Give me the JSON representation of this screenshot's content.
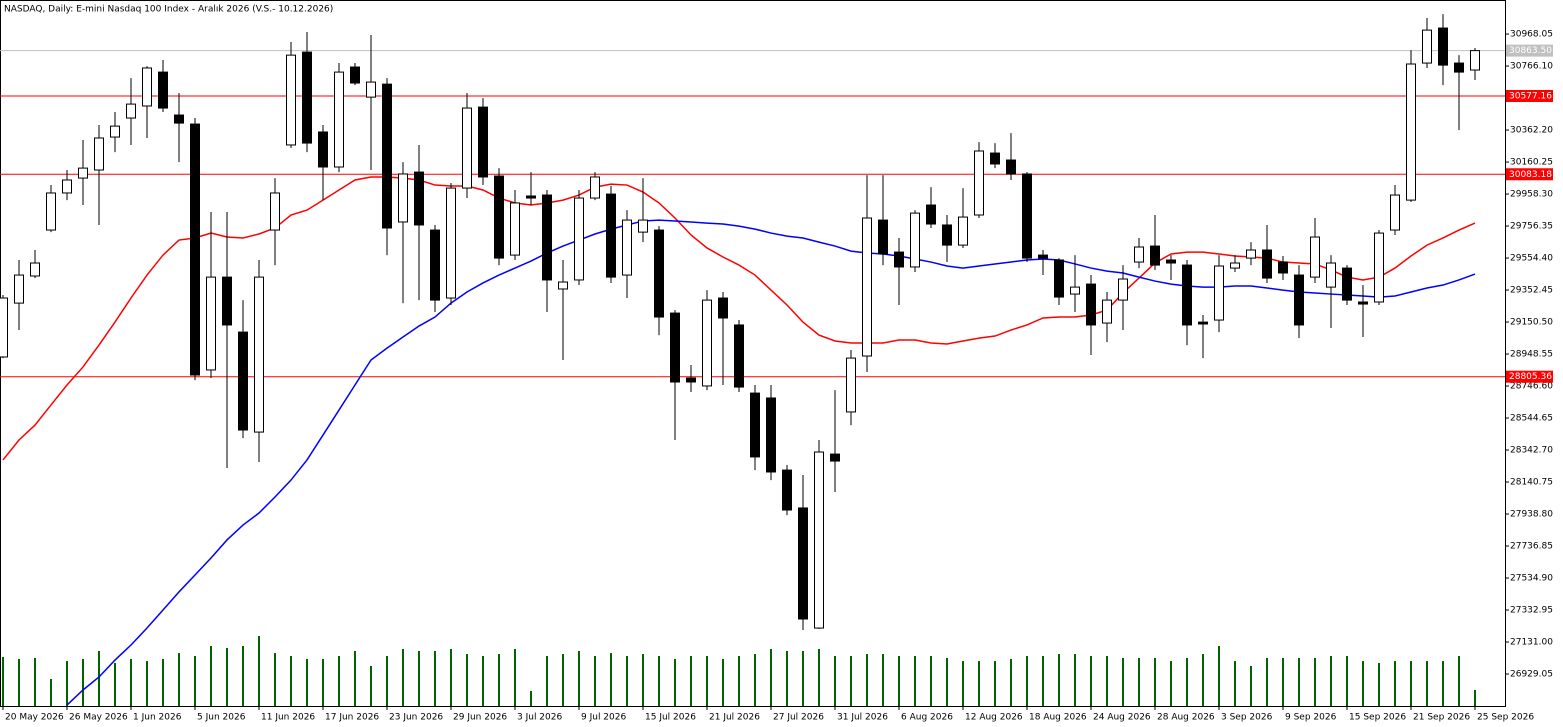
{
  "chart_data": {
    "type": "candlestick",
    "title": "NASDAQ, Daily:  E-mini Nasdaq 100 Index - Aralık 2026 (V.S.- 10.12.2026)",
    "categories": [
      "20 May 2026",
      null,
      null,
      null,
      "26 May 2026",
      null,
      null,
      null,
      "1 Jun 2026",
      null,
      null,
      null,
      "5 Jun 2026",
      null,
      null,
      null,
      "11 Jun 2026",
      null,
      null,
      null,
      "17 Jun 2026",
      null,
      null,
      null,
      "23 Jun 2026",
      null,
      null,
      null,
      "29 Jun 2026",
      null,
      null,
      null,
      "3 Jul 2026",
      null,
      null,
      null,
      "9 Jul 2026",
      null,
      null,
      null,
      "15 Jul 2026",
      null,
      null,
      null,
      "21 Jul 2026",
      null,
      null,
      null,
      "27 Jul 2026",
      null,
      null,
      null,
      "31 Jul 2026",
      null,
      null,
      null,
      "6 Aug 2026",
      null,
      null,
      null,
      "12 Aug 2026",
      null,
      null,
      null,
      "18 Aug 2026",
      null,
      null,
      null,
      "24 Aug 2026",
      null,
      null,
      null,
      "28 Aug 2026",
      null,
      null,
      null,
      "3 Sep 2026",
      null,
      null,
      null,
      "9 Sep 2026",
      null,
      null,
      null,
      "15 Sep 2026",
      null,
      null,
      null,
      "21 Sep 2026",
      null,
      null,
      null,
      "25 Sep 2026"
    ],
    "open": [
      28930,
      29270,
      29441,
      29731,
      29965,
      30059,
      30110,
      30318,
      30438,
      30514,
      30728,
      30457,
      30400,
      28848,
      29434,
      29087,
      28456,
      29731,
      30268,
      30854,
      30350,
      30129,
      30760,
      30570,
      30652,
      29782,
      30097,
      29731,
      29302,
      29996,
      30507,
      30072,
      29573,
      29946,
      29952,
      29359,
      29416,
      29933,
      29958,
      29447,
      29718,
      29731,
      29207,
      28797,
      28747,
      29302,
      29132,
      28702,
      28671,
      28216,
      27977,
      27219,
      28317,
      28583,
      28936,
      29794,
      29592,
      29498,
      29889,
      29763,
      29636,
      29826,
      30217,
      30173,
      30085,
      29573,
      29542,
      29327,
      29390,
      29144,
      29289,
      29529,
      29630,
      29542,
      29510,
      29150,
      29163,
      29491,
      29554,
      29605,
      29529,
      29447,
      29434,
      29371,
      29491,
      29277,
      29277,
      29731,
      29920,
      30785,
      31006,
      30785,
      30741
    ],
    "high": [
      29321,
      29542,
      29605,
      30015,
      30110,
      30299,
      30394,
      30476,
      30690,
      30766,
      30804,
      30596,
      30438,
      29845,
      29845,
      29289,
      29542,
      30059,
      30918,
      30981,
      30394,
      30785,
      30785,
      30962,
      30690,
      30160,
      30268,
      29763,
      30028,
      30596,
      30564,
      30122,
      29984,
      30097,
      29984,
      29542,
      29984,
      30097,
      30009,
      29857,
      30059,
      29756,
      29226,
      28879,
      29352,
      29340,
      29163,
      28753,
      28753,
      28248,
      28185,
      28406,
      28721,
      28974,
      30078,
      30078,
      29681,
      29857,
      30002,
      29826,
      29996,
      30286,
      30280,
      30343,
      30097,
      29605,
      29554,
      29573,
      29447,
      29340,
      29510,
      29681,
      29826,
      29573,
      29542,
      29195,
      29573,
      29573,
      29655,
      29763,
      29567,
      29510,
      29807,
      29573,
      29510,
      29384,
      29731,
      30015,
      30867,
      31069,
      31094,
      30835,
      30880
    ],
    "low": [
      28923,
      29100,
      29428,
      29718,
      29920,
      29889,
      29763,
      30223,
      30268,
      30312,
      30476,
      30160,
      28784,
      28797,
      28229,
      28418,
      28267,
      29510,
      30249,
      30223,
      29920,
      30097,
      30646,
      30110,
      29573,
      29270,
      29289,
      29214,
      29258,
      29933,
      30015,
      29510,
      29542,
      29889,
      29214,
      28911,
      29384,
      29920,
      29397,
      29302,
      29655,
      29068,
      28406,
      28709,
      28721,
      28753,
      28709,
      28216,
      28153,
      27932,
      27207,
      27213,
      28078,
      28500,
      28835,
      29510,
      29258,
      29466,
      29744,
      29529,
      29618,
      29807,
      30122,
      30047,
      29529,
      29447,
      29258,
      29214,
      28942,
      29024,
      29100,
      29491,
      29479,
      29416,
      29005,
      28923,
      29087,
      29466,
      29510,
      29397,
      29416,
      29049,
      29397,
      29113,
      29258,
      29056,
      29258,
      29700,
      29908,
      30754,
      30646,
      30362,
      30678
    ],
    "close": [
      29302,
      29447,
      29523,
      29965,
      30047,
      30122,
      30312,
      30387,
      30526,
      30754,
      30501,
      30406,
      28816,
      29434,
      29132,
      28469,
      29434,
      29965,
      30835,
      30280,
      30129,
      30728,
      30659,
      30665,
      29744,
      30085,
      29763,
      29289,
      29996,
      30501,
      30066,
      29554,
      29902,
      29933,
      29416,
      29403,
      29933,
      30066,
      29434,
      29794,
      29794,
      29182,
      28772,
      28772,
      29289,
      29176,
      28740,
      28299,
      28204,
      27964,
      27276,
      28330,
      28273,
      28923,
      29807,
      29580,
      29498,
      29838,
      29769,
      29636,
      29813,
      30230,
      30148,
      30085,
      29554,
      29554,
      29308,
      29371,
      29132,
      29289,
      29422,
      29624,
      29510,
      29523,
      29132,
      29138,
      29504,
      29523,
      29605,
      29428,
      29460,
      29132,
      29687,
      29523,
      29289,
      29264,
      29712,
      29952,
      30779,
      30993,
      30772,
      30728,
      30863.5
    ],
    "up_color": "#ffffff",
    "down_color": "#000000",
    "overlays": [
      {
        "color": "#ff0000",
        "values": [
          28280,
          28406,
          28500,
          28627,
          28753,
          28867,
          29005,
          29150,
          29302,
          29447,
          29573,
          29668,
          29681,
          29712,
          29687,
          29681,
          29706,
          29744,
          29826,
          29857,
          29920,
          29984,
          30047,
          30066,
          30066,
          30059,
          30047,
          30015,
          30009,
          30009,
          29984,
          29933,
          29902,
          29889,
          29902,
          29920,
          29952,
          30002,
          30021,
          30015,
          29971,
          29902,
          29807,
          29700,
          29618,
          29561,
          29510,
          29447,
          29352,
          29258,
          29150,
          29068,
          29031,
          29018,
          29018,
          29018,
          29037,
          29037,
          29018,
          29012,
          29031,
          29049,
          29062,
          29100,
          29132,
          29176,
          29182,
          29182,
          29195,
          29226,
          29334,
          29428,
          29523,
          29580,
          29592,
          29592,
          29580,
          29567,
          29561,
          29554,
          29529,
          29523,
          29517,
          29479,
          29434,
          29416,
          29434,
          29491,
          29567,
          29636,
          29681,
          29731,
          29775
        ]
      },
      {
        "color": "#0000ff",
        "values": [
          null,
          null,
          null,
          null,
          26733,
          26828,
          26910,
          27017,
          27112,
          27219,
          27333,
          27447,
          27554,
          27661,
          27775,
          27869,
          27945,
          28046,
          28153,
          28280,
          28437,
          28595,
          28753,
          28911,
          28986,
          29056,
          29125,
          29182,
          29270,
          29340,
          29397,
          29447,
          29491,
          29535,
          29586,
          29630,
          29668,
          29706,
          29737,
          29763,
          29788,
          29794,
          29788,
          29782,
          29775,
          29769,
          29756,
          29737,
          29712,
          29693,
          29681,
          29655,
          29630,
          29598,
          29586,
          29580,
          29567,
          29548,
          29529,
          29504,
          29491,
          29504,
          29517,
          29529,
          29542,
          29548,
          29542,
          29517,
          29491,
          29472,
          29460,
          29434,
          29409,
          29390,
          29378,
          29371,
          29371,
          29378,
          29378,
          29365,
          29352,
          29340,
          29334,
          29327,
          29321,
          29315,
          29308,
          29315,
          29340,
          29365,
          29384,
          29416,
          29453
        ]
      }
    ],
    "volume": {
      "color": "#006400",
      "values": [
        49,
        47,
        48,
        27,
        45,
        47,
        55,
        43,
        47,
        45,
        47,
        53,
        50,
        60,
        58,
        60,
        70,
        53,
        50,
        47,
        47,
        50,
        55,
        40,
        50,
        57,
        55,
        55,
        57,
        52,
        50,
        52,
        57,
        15,
        50,
        52,
        55,
        50,
        53,
        50,
        52,
        50,
        47,
        50,
        50,
        47,
        50,
        52,
        57,
        55,
        55,
        57,
        50,
        50,
        52,
        52,
        50,
        50,
        50,
        48,
        45,
        45,
        45,
        47,
        50,
        50,
        52,
        52,
        50,
        50,
        48,
        48,
        48,
        45,
        48,
        52,
        60,
        45,
        40,
        48,
        48,
        48,
        48,
        50,
        50,
        45,
        43,
        45,
        45,
        45,
        45,
        50,
        16
      ]
    },
    "hlines": [
      {
        "value": 30863.5,
        "label": "30863.50",
        "color": "#c0c0c0"
      },
      {
        "value": 30577.16,
        "color": "#ff0000"
      },
      {
        "value": 30083.18,
        "color": "#ff0000"
      },
      {
        "value": 28805.36,
        "color": "#ff0000"
      }
    ],
    "ylim": [
      26727,
      31183
    ],
    "yticks": [
      30968.05,
      {
        "value": 30766.1,
        "label": "30766.10"
      },
      {
        "value": 30362.2,
        "label": "30362.20"
      },
      30160.25,
      {
        "value": 29958.3,
        "label": "29958.30"
      },
      29756.35,
      {
        "value": 29554.4,
        "label": "29554.40"
      },
      29352.45,
      {
        "value": 29150.5,
        "label": "29150.50"
      },
      28948.55,
      {
        "value": 28746.6,
        "label": "28746.60"
      },
      28544.65,
      {
        "value": 28342.7,
        "label": "28342.70"
      },
      28140.75,
      {
        "value": 27938.8,
        "label": "27938.80"
      },
      27736.85,
      {
        "value": 27534.9,
        "label": "27534.90"
      },
      27332.95,
      {
        "value": 27131,
        "label": "27131.00"
      },
      26929.05
    ]
  }
}
